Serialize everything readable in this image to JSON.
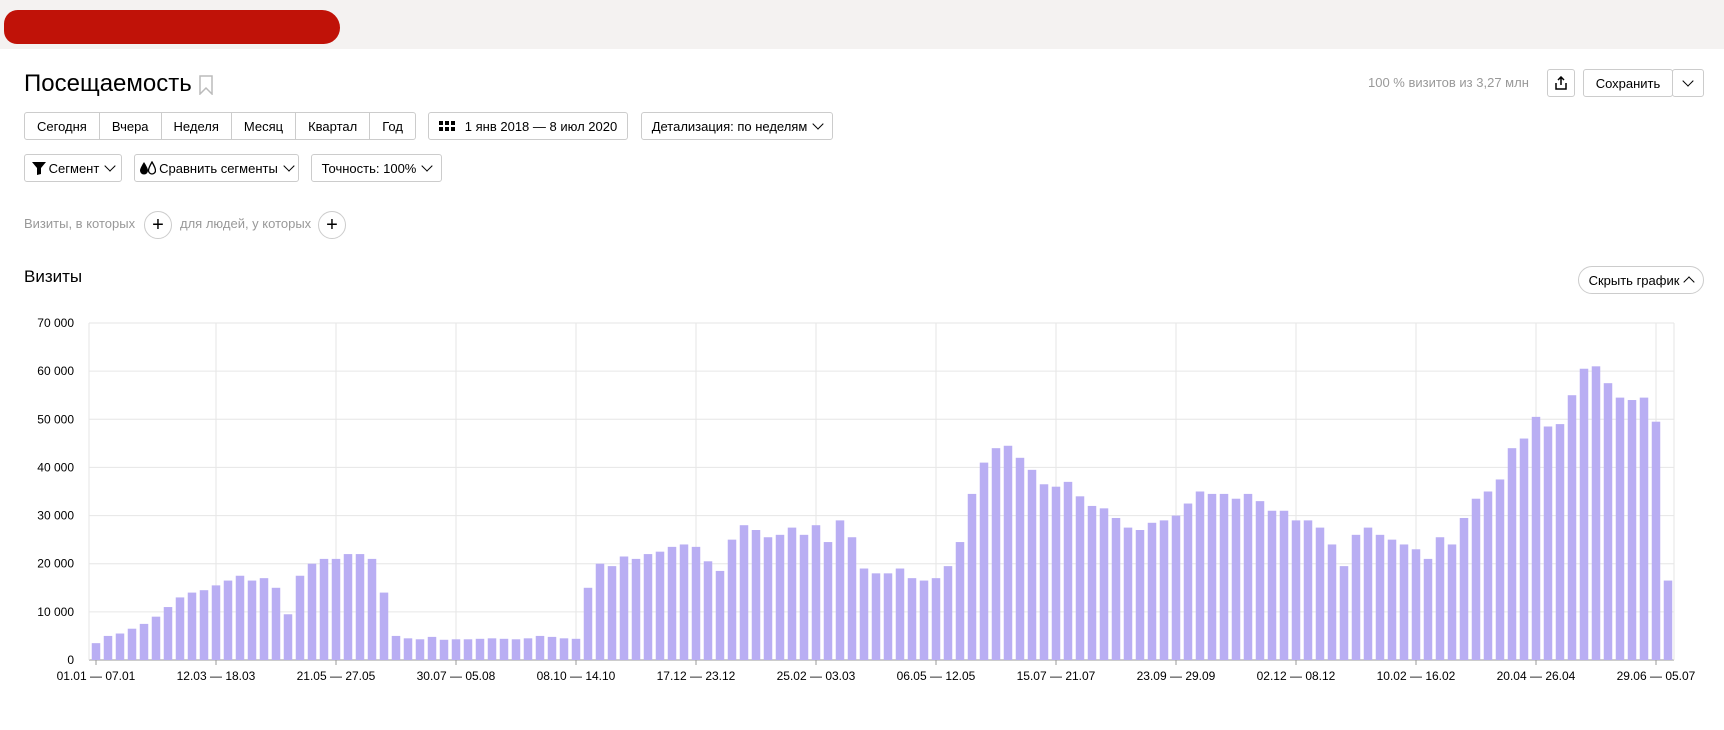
{
  "header": {
    "title": "Посещаемость",
    "visits_info": "100 % визитов из 3,27 млн",
    "save_label": "Сохранить"
  },
  "periods": [
    "Сегодня",
    "Вчера",
    "Неделя",
    "Месяц",
    "Квартал",
    "Год"
  ],
  "date_range": "1 янв 2018 — 8 июл 2020",
  "detail": "Детализация: по неделям",
  "segment": "Сегмент",
  "compare": "Сравнить сегменты",
  "accuracy": "Точность: 100%",
  "filters": {
    "visits_label": "Визиты, в которых",
    "people_label": "для людей, у которых"
  },
  "section": {
    "title": "Визиты",
    "hide_chart": "Скрыть график"
  },
  "chart_data": {
    "type": "bar",
    "color": "#b9aef3",
    "ylim": [
      0,
      70000
    ],
    "yticks": [
      "0",
      "10 000",
      "20 000",
      "30 000",
      "40 000",
      "50 000",
      "60 000",
      "70 000"
    ],
    "xtick_labels": [
      {
        "index": 0,
        "label": "01.01 — 07.01"
      },
      {
        "index": 10,
        "label": "12.03 — 18.03"
      },
      {
        "index": 20,
        "label": "21.05 — 27.05"
      },
      {
        "index": 30,
        "label": "30.07 — 05.08"
      },
      {
        "index": 40,
        "label": "08.10 — 14.10"
      },
      {
        "index": 50,
        "label": "17.12 — 23.12"
      },
      {
        "index": 60,
        "label": "25.02 — 03.03"
      },
      {
        "index": 70,
        "label": "06.05 — 12.05"
      },
      {
        "index": 80,
        "label": "15.07 — 21.07"
      },
      {
        "index": 90,
        "label": "23.09 — 29.09"
      },
      {
        "index": 100,
        "label": "02.12 — 08.12"
      },
      {
        "index": 110,
        "label": "10.02 — 16.02"
      },
      {
        "index": 120,
        "label": "20.04 — 26.04"
      },
      {
        "index": 130,
        "label": "29.06 — 05.07"
      }
    ],
    "values": [
      3500,
      5000,
      5500,
      6500,
      7500,
      9000,
      11000,
      13000,
      14000,
      14500,
      15500,
      16500,
      17500,
      16500,
      17000,
      15000,
      9500,
      17500,
      20000,
      21000,
      21000,
      22000,
      22000,
      21000,
      14000,
      5000,
      4500,
      4300,
      4800,
      4200,
      4300,
      4300,
      4400,
      4500,
      4400,
      4300,
      4500,
      5000,
      4800,
      4500,
      4400,
      15000,
      20000,
      19500,
      21500,
      21000,
      22000,
      22500,
      23500,
      24000,
      23500,
      20500,
      18500,
      25000,
      28000,
      27000,
      25500,
      26000,
      27500,
      26000,
      28000,
      24500,
      29000,
      25500,
      19000,
      18000,
      18000,
      19000,
      17000,
      16500,
      17000,
      19500,
      24500,
      34500,
      41000,
      44000,
      44500,
      42000,
      39500,
      36500,
      36000,
      37000,
      34000,
      32000,
      31500,
      29500,
      27500,
      27000,
      28500,
      29000,
      30000,
      32500,
      35000,
      34500,
      34500,
      33500,
      34500,
      33000,
      31000,
      31000,
      29000,
      29000,
      27500,
      24000,
      19500,
      26000,
      27500,
      26000,
      25000,
      24000,
      23000,
      21000,
      25500,
      24000,
      29500,
      33500,
      35000,
      37500,
      44000,
      46000,
      50500,
      48500,
      49000,
      55000,
      60500,
      61000,
      57500,
      54500,
      54000,
      54500,
      49500,
      16500
    ]
  }
}
